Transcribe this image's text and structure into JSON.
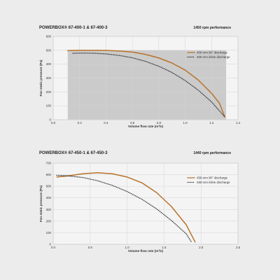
{
  "chart_data": [
    {
      "type": "line",
      "title": "POWERBOX® 67-400-1 & 67-400-3",
      "subtitle": "1450 rpm performance",
      "xlabel": "Volume flow rate (m³/s)",
      "ylabel": "Fan static pressure (Pa)",
      "xlim": [
        0.0,
        1.4
      ],
      "ylim": [
        0,
        600
      ],
      "xticks": [
        "0.0",
        "0.2",
        "0.4",
        "0.6",
        "0.8",
        "1.0",
        "1.2",
        "1.4"
      ],
      "yticks": [
        "0",
        "100",
        "200",
        "300",
        "400",
        "500",
        "600"
      ],
      "grid": true,
      "legend_position": "upper-right",
      "shaded_region": {
        "x": [
          0.11,
          1.31
        ],
        "y": [
          0,
          500
        ]
      },
      "series": [
        {
          "name": "400 mm 90° discharge",
          "style": "solid",
          "color": "#b8732a",
          "points": [
            [
              0.11,
              498
            ],
            [
              0.2,
              500
            ],
            [
              0.3,
              500
            ],
            [
              0.4,
              499
            ],
            [
              0.5,
              495
            ],
            [
              0.6,
              487
            ],
            [
              0.7,
              470
            ],
            [
              0.8,
              445
            ],
            [
              0.9,
              408
            ],
            [
              1.0,
              357
            ],
            [
              1.1,
              285
            ],
            [
              1.2,
              190
            ],
            [
              1.26,
              118
            ],
            [
              1.3,
              20
            ]
          ]
        },
        {
          "name": "400 mm inline discharge",
          "style": "dotted",
          "color": "#222222",
          "points": [
            [
              0.15,
              478
            ],
            [
              0.2,
              480
            ],
            [
              0.3,
              479
            ],
            [
              0.4,
              474
            ],
            [
              0.5,
              463
            ],
            [
              0.6,
              446
            ],
            [
              0.7,
              420
            ],
            [
              0.8,
              385
            ],
            [
              0.9,
              340
            ],
            [
              1.0,
              282
            ],
            [
              1.1,
              212
            ],
            [
              1.2,
              128
            ],
            [
              1.3,
              20
            ]
          ]
        }
      ]
    },
    {
      "type": "line",
      "title": "POWERBOX® 67-450-1 & 67-450-3",
      "subtitle": "1440 rpm performance",
      "xlabel": "Volume flow rate (m³/s)",
      "ylabel": "Fan static pressure (Pa)",
      "xlim": [
        0.0,
        2.5
      ],
      "ylim": [
        0,
        700
      ],
      "xticks": [
        "0.0",
        "0.5",
        "1.0",
        "1.5",
        "2.0",
        "2.5"
      ],
      "yticks": [
        "0",
        "100",
        "200",
        "300",
        "400",
        "500",
        "600",
        "700"
      ],
      "grid": true,
      "legend_position": "upper-right",
      "series": [
        {
          "name": "450 mm 90° discharge",
          "style": "solid",
          "color": "#b8732a",
          "points": [
            [
              0.05,
              580
            ],
            [
              0.2,
              590
            ],
            [
              0.4,
              608
            ],
            [
              0.6,
              617
            ],
            [
              0.8,
              608
            ],
            [
              1.0,
              580
            ],
            [
              1.2,
              530
            ],
            [
              1.4,
              445
            ],
            [
              1.6,
              325
            ],
            [
              1.8,
              168
            ],
            [
              1.92,
              20
            ]
          ]
        },
        {
          "name": "450 mm inline discharge",
          "style": "dotted",
          "color": "#222222",
          "points": [
            [
              0.05,
              595
            ],
            [
              0.2,
              590
            ],
            [
              0.4,
              576
            ],
            [
              0.6,
              548
            ],
            [
              0.8,
              508
            ],
            [
              1.0,
              455
            ],
            [
              1.2,
              388
            ],
            [
              1.4,
              305
            ],
            [
              1.6,
              205
            ],
            [
              1.8,
              90
            ],
            [
              1.87,
              20
            ]
          ]
        }
      ]
    }
  ]
}
